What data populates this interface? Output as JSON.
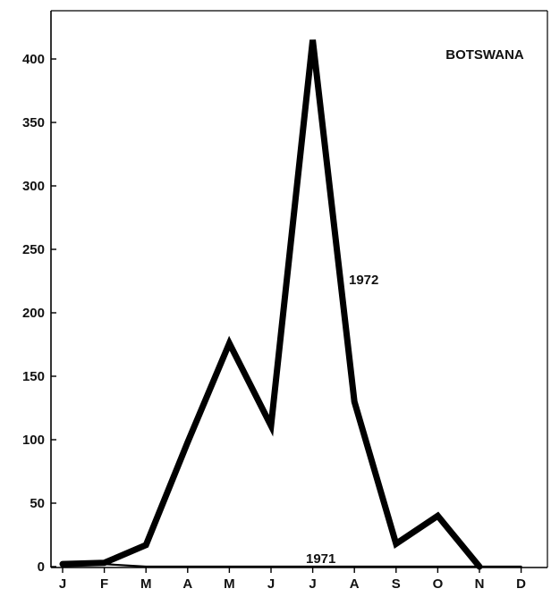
{
  "chart_data": {
    "type": "line",
    "title": "BOTSWANA",
    "xlabel": "",
    "ylabel": "",
    "categories": [
      "J",
      "F",
      "M",
      "A",
      "M",
      "J",
      "J",
      "A",
      "S",
      "O",
      "N",
      "D"
    ],
    "ylim": [
      0,
      425
    ],
    "yticks": [
      "0",
      "50",
      "100",
      "150",
      "200",
      "250",
      "300",
      "350",
      "400"
    ],
    "grid": false,
    "legend": "none",
    "series": [
      {
        "name": "1972",
        "values": [
          2,
          3,
          17,
          98,
          176,
          111,
          415,
          130,
          18,
          40,
          0,
          null
        ],
        "color": "#000000"
      },
      {
        "name": "1971",
        "values": [
          1,
          2,
          0,
          0,
          0,
          0,
          0,
          0,
          0,
          0,
          0,
          0
        ],
        "color": "#000000"
      }
    ]
  }
}
